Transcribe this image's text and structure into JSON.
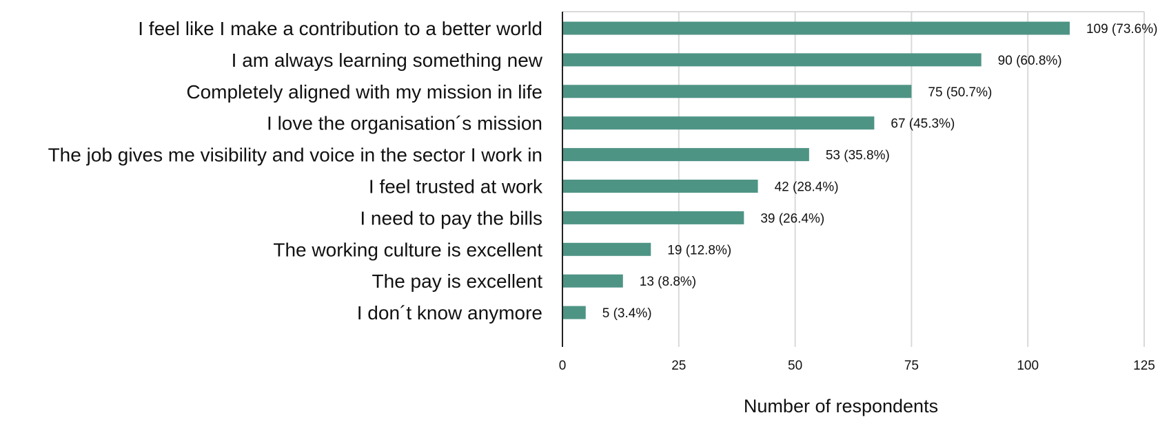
{
  "chart_data": {
    "type": "bar",
    "orientation": "horizontal",
    "categories": [
      "I feel like I make a contribution to a better world",
      "I am always learning something new",
      "Completely aligned with my mission in life",
      "I love the organisation´s mission",
      "The job gives me visibility and voice in the sector I work in",
      "I feel trusted at work",
      "I need to pay the bills",
      "The working culture is excellent",
      "The pay is excellent",
      "I don´t know anymore"
    ],
    "values": [
      109,
      90,
      75,
      67,
      53,
      42,
      39,
      19,
      13,
      5
    ],
    "data_labels": [
      "109 (73.6%)",
      "90 (60.8%)",
      "75 (50.7%)",
      "67 (45.3%)",
      "53 (35.8%)",
      "42 (28.4%)",
      "39 (26.4%)",
      "19 (12.8%)",
      "13 (8.8%)",
      "5 (3.4%)"
    ],
    "xlabel": "Number of respondents",
    "ylabel": "",
    "title": "",
    "xlim": [
      0,
      125
    ],
    "xticks": [
      0,
      25,
      50,
      75,
      100,
      125
    ],
    "grid": true,
    "legend": "none",
    "bar_color": "#4e9485",
    "grid_color": "#d9d9d9",
    "axis_color": "#222222"
  }
}
